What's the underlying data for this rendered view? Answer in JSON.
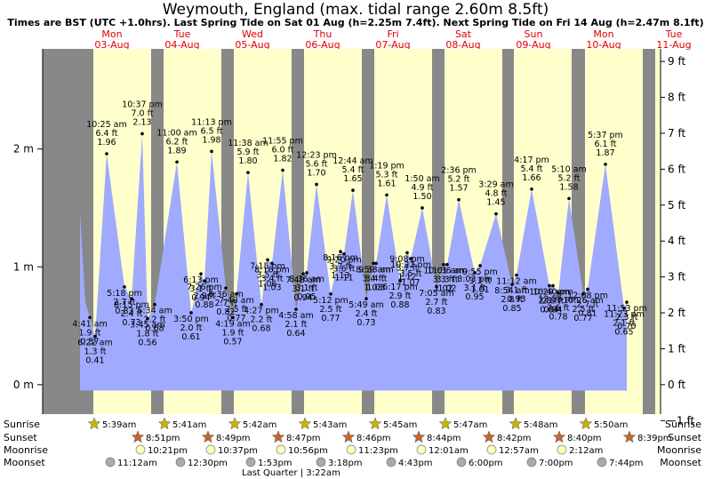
{
  "title": "Weymouth, England (max. tidal range 2.60m 8.5ft)",
  "subtitle": "Times are BST (UTC +1.0hrs). Last Spring Tide on Sat 01 Aug (h=2.25m 7.4ft). Next Spring Tide on Fri 14 Aug (h=2.47m 8.1ft)",
  "colors": {
    "night": "#888888",
    "day": "#ffffcc",
    "tide_fill": "#a0aaff",
    "day_text": "#e00000",
    "sun_icon": "#c8b400",
    "sunset_icon": "#c8642a",
    "moonrise_icon": "#ffffbb",
    "moonset_icon": "#aaaaaa"
  },
  "days": [
    {
      "dow": "Mon",
      "date": "03-Aug"
    },
    {
      "dow": "Tue",
      "date": "04-Aug"
    },
    {
      "dow": "Wed",
      "date": "05-Aug"
    },
    {
      "dow": "Thu",
      "date": "06-Aug"
    },
    {
      "dow": "Fri",
      "date": "07-Aug"
    },
    {
      "dow": "Sat",
      "date": "08-Aug"
    },
    {
      "dow": "Sun",
      "date": "09-Aug"
    },
    {
      "dow": "Mon",
      "date": "10-Aug"
    },
    {
      "dow": "Tue",
      "date": "11-Aug"
    }
  ],
  "row_labels": {
    "sunrise": "Sunrise",
    "sunset": "Sunset",
    "moonrise": "Moonrise",
    "moonset": "Moonset"
  },
  "sunrise": [
    "5:39am",
    "5:41am",
    "5:42am",
    "5:43am",
    "5:45am",
    "5:47am",
    "5:48am",
    "5:50am"
  ],
  "sunset": [
    "8:51pm",
    "8:49pm",
    "8:47pm",
    "8:46pm",
    "8:44pm",
    "8:42pm",
    "8:40pm",
    "8:39pm"
  ],
  "moonrise": [
    "10:21pm",
    "10:37pm",
    "10:56pm",
    "11:23pm",
    "12:01am",
    "12:57am",
    "2:12am"
  ],
  "moonset": [
    "11:12am",
    "12:30pm",
    "1:53pm",
    "3:18pm",
    "4:43pm",
    "6:00pm",
    "7:00pm",
    "7:44pm"
  ],
  "moon_phase": "Last Quarter | 3:22am",
  "chart_data": {
    "type": "area",
    "xlabel": "",
    "ylabel_left": "m",
    "ylabel_right": "ft",
    "ylim_m": [
      -0.25,
      2.85
    ],
    "yticks_m": [
      "2 m",
      "1 m",
      "0 m"
    ],
    "yticks_ft": [
      "9 ft",
      "8 ft",
      "7 ft",
      "6 ft",
      "5 ft",
      "4 ft",
      "3 ft",
      "2 ft",
      "1 ft",
      "0 ft",
      "−1 ft"
    ],
    "series": [
      {
        "points": [
          {
            "t": "4:41 am",
            "m": 0.57,
            "ft": "1.9 ft"
          },
          {
            "t": "6:22 am",
            "m": 0.41,
            "ft": "1.3 ft"
          },
          {
            "t": "10:25 am",
            "m": 1.96,
            "ft": "6.4 ft"
          },
          {
            "t": "5:18 pm",
            "m": 0.83,
            "ft": "2.7 ft"
          },
          {
            "t": "8:15 pm",
            "m": 0.73,
            "ft": "2.4 ft"
          },
          {
            "t": "10:37 pm",
            "m": 2.13,
            "ft": "7.0 ft"
          },
          {
            "t": "5:34 am",
            "m": 0.68,
            "ft": "2.2 ft"
          },
          {
            "t": "3:45 am",
            "m": 0.56,
            "ft": "1.8 ft"
          },
          {
            "t": "11:00 am",
            "m": 1.89,
            "ft": "6.2 ft"
          },
          {
            "t": "3:50 pm",
            "m": 0.61,
            "ft": "2.0 ft"
          },
          {
            "t": "6:13 pm",
            "m": 0.94,
            "ft": "3.1 ft"
          },
          {
            "t": "7:26 pm",
            "m": 0.88,
            "ft": "2.9 ft"
          },
          {
            "t": "11:13 pm",
            "m": 1.98,
            "ft": "6.5 ft"
          },
          {
            "t": "6:36 am",
            "m": 0.82,
            "ft": "2.7 ft"
          },
          {
            "t": "4:19 am",
            "m": 0.57,
            "ft": "1.9 ft"
          },
          {
            "t": "7:48 am",
            "m": 0.77,
            "ft": "2.5 ft"
          },
          {
            "t": "11:38 am",
            "m": 1.8,
            "ft": "5.9 ft"
          },
          {
            "t": "4:27 pm",
            "m": 0.68,
            "ft": "2.2 ft"
          },
          {
            "t": "7:15 pm",
            "m": 1.06,
            "ft": "3.5 ft"
          },
          {
            "t": "8:16 pm",
            "m": 1.03,
            "ft": "3.4 ft"
          },
          {
            "t": "11:55 pm",
            "m": 1.82,
            "ft": "6.0 ft"
          },
          {
            "t": "4:58 am",
            "m": 0.64,
            "ft": "2.1 ft"
          },
          {
            "t": "7:48 am",
            "m": 0.94,
            "ft": "3.1 ft"
          },
          {
            "t": "8:36 am",
            "m": 0.95,
            "ft": "3.1 ft"
          },
          {
            "t": "12:23 pm",
            "m": 1.7,
            "ft": "5.6 ft"
          },
          {
            "t": "5:12 pm",
            "m": 0.77,
            "ft": "2.5 ft"
          },
          {
            "t": "8:16 pm",
            "m": 1.13,
            "ft": "3.7 ft"
          },
          {
            "t": "9:20 pm",
            "m": 1.11,
            "ft": "3.6 ft"
          },
          {
            "t": "12:44 am",
            "m": 1.65,
            "ft": "5.4 ft"
          },
          {
            "t": "5:49 am",
            "m": 0.73,
            "ft": "2.4 ft"
          },
          {
            "t": "8:59 am",
            "m": 1.03,
            "ft": "3.4 ft"
          },
          {
            "t": "9:33 am",
            "m": 1.03,
            "ft": "3.4 ft"
          },
          {
            "t": "1:19 pm",
            "m": 1.61,
            "ft": "5.3 ft"
          },
          {
            "t": "6:17 pm",
            "m": 0.88,
            "ft": "2.9 ft"
          },
          {
            "t": "9:08 pm",
            "m": 1.12,
            "ft": "3.7 ft"
          },
          {
            "t": "10:22 pm",
            "m": 1.07,
            "ft": "3.5 ft"
          },
          {
            "t": "1:50 am",
            "m": 1.5,
            "ft": "4.9 ft"
          },
          {
            "t": "7:05 am",
            "m": 0.83,
            "ft": "2.7 ft"
          },
          {
            "t": "10:01 am",
            "m": 1.02,
            "ft": "3.3 ft"
          },
          {
            "t": "11:36 am",
            "m": 1.02,
            "ft": "3.3 ft"
          },
          {
            "t": "2:36 pm",
            "m": 1.57,
            "ft": "5.2 ft"
          },
          {
            "t": "8:03 pm",
            "m": 0.95,
            "ft": "3.1 ft"
          },
          {
            "t": "9:55 pm",
            "m": 1.01,
            "ft": "3.3 ft"
          },
          {
            "t": "3:29 am",
            "m": 1.45,
            "ft": "4.8 ft"
          },
          {
            "t": "8:54 am",
            "m": 0.85,
            "ft": "2.8 ft"
          },
          {
            "t": "11:12 am",
            "m": 0.93,
            "ft": "3.1 ft"
          },
          {
            "t": "4:17 pm",
            "m": 1.66,
            "ft": "5.4 ft"
          },
          {
            "t": "10:29 pm",
            "m": 0.84,
            "ft": "2.8 ft"
          },
          {
            "t": "10:40 pm",
            "m": 0.84,
            "ft": "2.8 ft"
          },
          {
            "t": "12:55 am",
            "m": 0.78,
            "ft": "2.6 ft"
          },
          {
            "t": "5:10 am",
            "m": 1.58,
            "ft": "5.2 ft"
          },
          {
            "t": "10:26 am",
            "m": 0.77,
            "ft": "2.5 ft"
          },
          {
            "t": "12:08 pm",
            "m": 0.81,
            "ft": "2.7 ft"
          },
          {
            "t": "5:37 pm",
            "m": 1.87,
            "ft": "6.1 ft"
          },
          {
            "t": "11:23 pm",
            "m": 0.65,
            "ft": "2.1 ft"
          },
          {
            "t": "11:53 pm",
            "m": 0.7,
            "ft": "2.3 ft"
          }
        ]
      }
    ]
  }
}
